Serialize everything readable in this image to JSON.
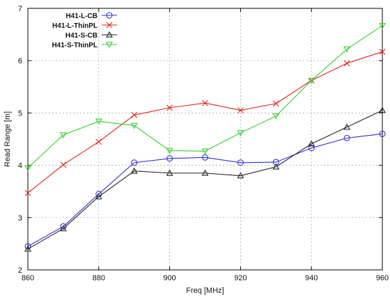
{
  "chart_data": {
    "type": "line",
    "title": "",
    "xlabel": "Freq [MHz]",
    "ylabel": "Read Range [m]",
    "xlim": [
      860,
      960
    ],
    "ylim": [
      2,
      7
    ],
    "x_ticks": [
      860,
      880,
      900,
      920,
      940,
      960
    ],
    "y_ticks": [
      2,
      3,
      4,
      5,
      6,
      7
    ],
    "grid": true,
    "legend_position": "top-left",
    "x": [
      860,
      870,
      880,
      890,
      900,
      910,
      920,
      930,
      940,
      950,
      960
    ],
    "series": [
      {
        "name": "H41-L-CB",
        "color": "#2f2fd6",
        "marker": "circle",
        "values": [
          2.45,
          2.83,
          3.45,
          4.05,
          4.13,
          4.15,
          4.05,
          4.06,
          4.33,
          4.52,
          4.6
        ]
      },
      {
        "name": "H41-L-ThinPL",
        "color": "#e8201c",
        "marker": "x",
        "values": [
          3.47,
          4.01,
          4.45,
          4.96,
          5.1,
          5.19,
          5.05,
          5.18,
          5.62,
          5.95,
          6.17
        ]
      },
      {
        "name": "H41-S-CB",
        "color": "#222222",
        "marker": "triangle-up",
        "values": [
          2.4,
          2.79,
          3.4,
          3.89,
          3.85,
          3.85,
          3.8,
          3.97,
          4.41,
          4.73,
          5.05
        ]
      },
      {
        "name": "H41-S-ThinPL",
        "color": "#35d12d",
        "marker": "triangle-down",
        "values": [
          3.95,
          4.58,
          4.84,
          4.76,
          4.28,
          4.27,
          4.62,
          4.94,
          5.62,
          6.22,
          6.67
        ]
      }
    ]
  }
}
